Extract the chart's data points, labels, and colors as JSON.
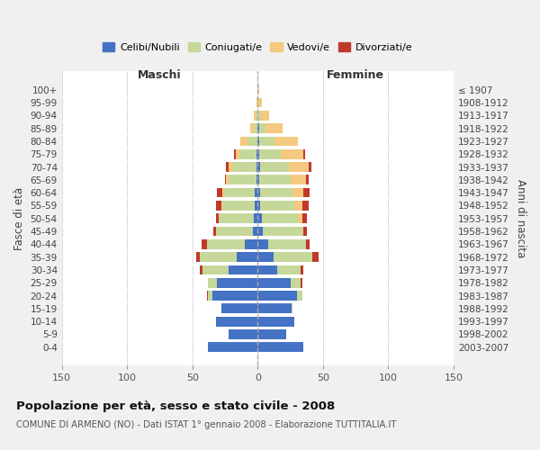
{
  "age_groups": [
    "0-4",
    "5-9",
    "10-14",
    "15-19",
    "20-24",
    "25-29",
    "30-34",
    "35-39",
    "40-44",
    "45-49",
    "50-54",
    "55-59",
    "60-64",
    "65-69",
    "70-74",
    "75-79",
    "80-84",
    "85-89",
    "90-94",
    "95-99",
    "100+"
  ],
  "birth_years": [
    "2003-2007",
    "1998-2002",
    "1993-1997",
    "1988-1992",
    "1983-1987",
    "1978-1982",
    "1973-1977",
    "1968-1972",
    "1963-1967",
    "1958-1962",
    "1953-1957",
    "1948-1952",
    "1943-1947",
    "1938-1942",
    "1933-1937",
    "1928-1932",
    "1923-1927",
    "1918-1922",
    "1913-1917",
    "1908-1912",
    "≤ 1907"
  ],
  "male": {
    "celibi": [
      38,
      22,
      32,
      28,
      35,
      31,
      22,
      16,
      10,
      4,
      3,
      2,
      2,
      1,
      1,
      1,
      0,
      0,
      0,
      0,
      0
    ],
    "coniugati": [
      0,
      0,
      0,
      0,
      3,
      7,
      20,
      28,
      29,
      28,
      27,
      25,
      24,
      21,
      18,
      13,
      8,
      3,
      1,
      0,
      0
    ],
    "vedovi": [
      0,
      0,
      0,
      0,
      0,
      0,
      0,
      0,
      0,
      0,
      0,
      1,
      1,
      2,
      3,
      3,
      5,
      3,
      2,
      1,
      0
    ],
    "divorziati": [
      0,
      0,
      0,
      0,
      1,
      0,
      2,
      3,
      4,
      2,
      2,
      4,
      4,
      1,
      2,
      1,
      0,
      0,
      0,
      0,
      0
    ]
  },
  "female": {
    "nubili": [
      35,
      22,
      28,
      26,
      30,
      25,
      15,
      12,
      8,
      4,
      3,
      2,
      2,
      1,
      2,
      1,
      1,
      1,
      0,
      0,
      0
    ],
    "coniugate": [
      0,
      0,
      0,
      1,
      4,
      8,
      18,
      30,
      29,
      30,
      28,
      26,
      25,
      24,
      22,
      17,
      12,
      5,
      2,
      0,
      0
    ],
    "vedove": [
      0,
      0,
      0,
      0,
      0,
      0,
      0,
      0,
      0,
      1,
      3,
      6,
      8,
      12,
      15,
      17,
      18,
      13,
      7,
      3,
      1
    ],
    "divorziate": [
      0,
      0,
      0,
      0,
      0,
      1,
      2,
      5,
      3,
      3,
      4,
      5,
      5,
      2,
      2,
      1,
      0,
      0,
      0,
      0,
      0
    ]
  },
  "colors": {
    "celibi": "#4472C4",
    "coniugati": "#C5D89A",
    "vedovi": "#F5C97F",
    "divorziati": "#C0392B"
  },
  "xlim": 150,
  "title": "Popolazione per età, sesso e stato civile - 2008",
  "subtitle": "COMUNE DI ARMENO (NO) - Dati ISTAT 1° gennaio 2008 - Elaborazione TUTTITALIA.IT",
  "xlabel_left": "Maschi",
  "xlabel_right": "Femmine",
  "ylabel_left": "Fasce di età",
  "ylabel_right": "Anni di nascita",
  "bg_color": "#f0f0f0",
  "plot_bg": "#ffffff"
}
